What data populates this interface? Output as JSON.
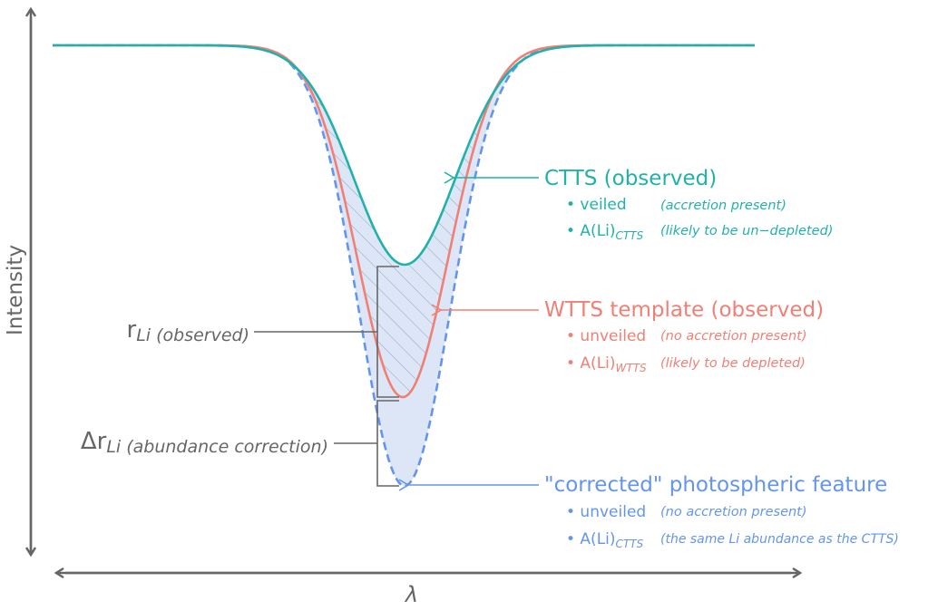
{
  "axes": {
    "y_label": "Intensity",
    "x_label": "λ"
  },
  "colors": {
    "ctts": "#20b2aa",
    "wtts": "#f08075",
    "corrected": "#6495ed",
    "axis": "#666666",
    "fill": "#dde6f7"
  },
  "ctts": {
    "title": "CTTS (observed)",
    "b1_main": "• veiled",
    "b1_note": "(accretion present)",
    "b2_main": "• A(Li)",
    "b2_sub": "CTTS",
    "b2_note": "(likely to be un−depleted)"
  },
  "wtts": {
    "title": "WTTS template (observed)",
    "b1_main": "• unveiled",
    "b1_note": "(no accretion present)",
    "b2_main": "• A(Li)",
    "b2_sub": "WTTS",
    "b2_note": "(likely to be depleted)"
  },
  "corrected": {
    "title": "\"corrected\" photospheric feature",
    "b1_main": "• unveiled",
    "b1_note": "(no accretion present)",
    "b2_main": "• A(Li)",
    "b2_sub": "CTTS",
    "b2_note": "(the same Li abundance as the CTTS)"
  },
  "r_li": {
    "main": "r",
    "sub": "Li (observed)"
  },
  "delta_r": {
    "main": "Δr",
    "sub": "Li (abundance correction)"
  }
}
